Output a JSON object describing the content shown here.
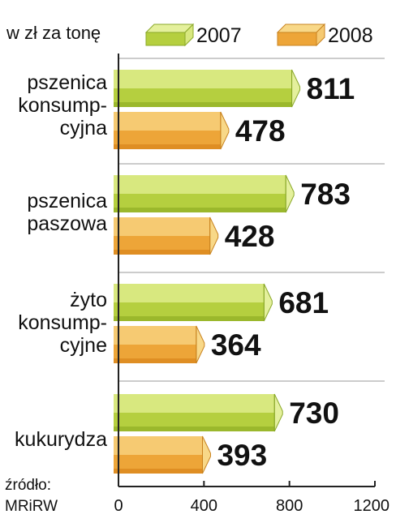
{
  "chart_data": {
    "type": "bar",
    "orientation": "horizontal",
    "unit_label": "w zł za tonę",
    "categories": [
      [
        "pszenica",
        "konsump-",
        "cyjna"
      ],
      [
        "pszenica",
        "paszowa"
      ],
      [
        "żyto",
        "konsump-",
        "cyjne"
      ],
      [
        "kukurydza"
      ]
    ],
    "series": [
      {
        "name": "2007",
        "values": [
          811,
          783,
          681,
          730
        ]
      },
      {
        "name": "2008",
        "values": [
          478,
          428,
          364,
          393
        ]
      }
    ],
    "xlim": [
      0,
      1200
    ],
    "x_ticks": [
      "0",
      "400",
      "800",
      "1200"
    ],
    "grid": true,
    "legend_position": "top",
    "source_label": "źródło:",
    "source_value": "MRiRW"
  },
  "colors": {
    "series_2007": {
      "front": "#b5cf3f",
      "top": "#d8e87f",
      "bottom": "#9bb82c",
      "side": "#e4f09c",
      "edge": "#8aa82a"
    },
    "series_2008": {
      "front": "#eda538",
      "top": "#f6ca72",
      "bottom": "#df8e23",
      "side": "#f8d888",
      "edge": "#c98320"
    },
    "grid": "#9a9a9a",
    "axis": "#222222",
    "value_text": "#111111",
    "label_text": "#111111"
  }
}
